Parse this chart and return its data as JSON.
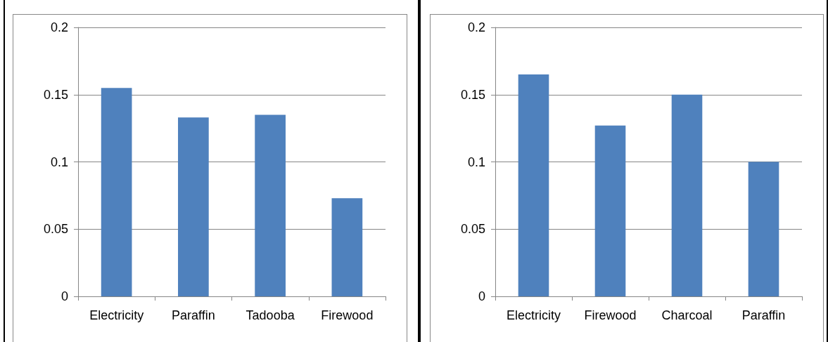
{
  "chart_data": [
    {
      "type": "bar",
      "categories": [
        "Electricity",
        "Paraffin",
        "Tadooba",
        "Firewood"
      ],
      "values": [
        0.155,
        0.133,
        0.135,
        0.073
      ],
      "color": "#4f81bd",
      "ylim": [
        0,
        0.2
      ],
      "yticks": [
        0,
        0.05,
        0.1,
        0.15,
        0.2
      ],
      "grid": "y"
    },
    {
      "type": "bar",
      "categories": [
        "Electricity",
        "Firewood",
        "Charcoal",
        "Paraffin"
      ],
      "values": [
        0.165,
        0.127,
        0.15,
        0.1
      ],
      "color": "#4f81bd",
      "ylim": [
        0,
        0.2
      ],
      "yticks": [
        0,
        0.05,
        0.1,
        0.15,
        0.2
      ],
      "grid": "y"
    }
  ]
}
